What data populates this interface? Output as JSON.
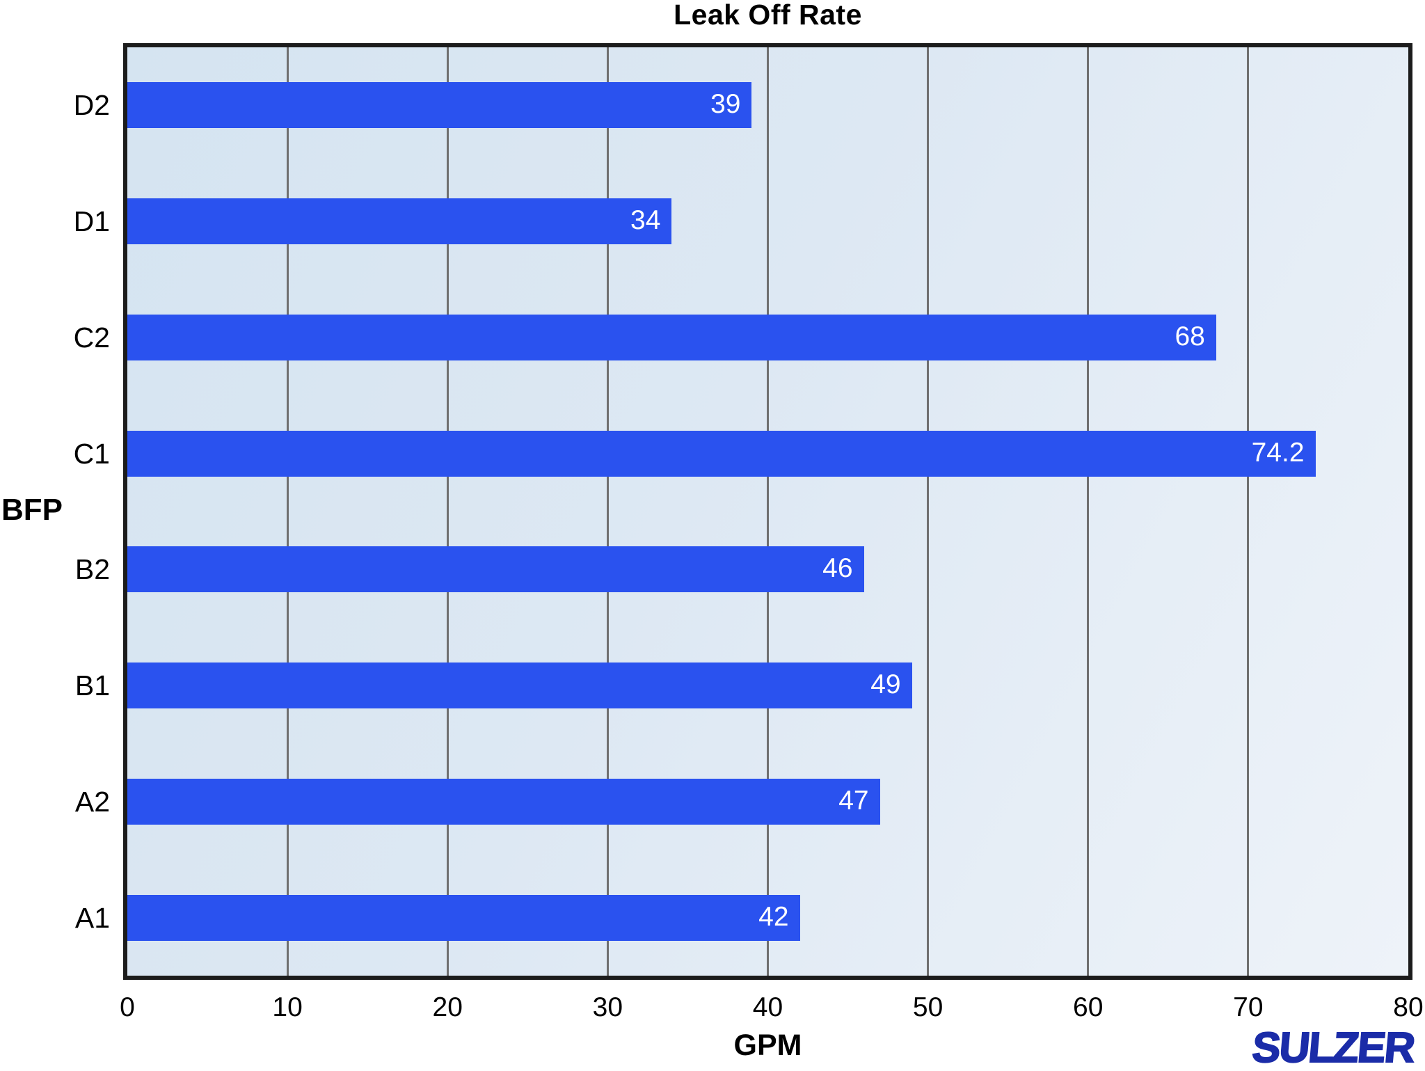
{
  "chart_data": {
    "type": "bar",
    "orientation": "horizontal",
    "title": "Leak Off Rate",
    "xlabel": "GPM",
    "ylabel": "BFP",
    "categories": [
      "D2",
      "D1",
      "C2",
      "C1",
      "B2",
      "B1",
      "A2",
      "A1"
    ],
    "values": [
      39,
      34,
      68,
      74.2,
      46,
      49,
      47,
      42
    ],
    "value_labels": [
      "39",
      "34",
      "68",
      "74.2",
      "46",
      "49",
      "47",
      "42"
    ],
    "xlim": [
      0,
      80
    ],
    "xticks": [
      0,
      10,
      20,
      30,
      40,
      50,
      60,
      70,
      80
    ],
    "grid": "vertical-only",
    "legend": "none",
    "colors": {
      "bar": "#2A52EF",
      "bar_label": "#FFFFFF",
      "plot_bg_top_left": "#D5E4F1",
      "plot_bg_bottom_right": "#EEF3F9",
      "gridline": "#6F6F6F",
      "frame": "#1C1C1C",
      "text": "#000000"
    }
  },
  "branding": {
    "logo_text": "SULZER",
    "logo_color": "#1B2CA8"
  }
}
